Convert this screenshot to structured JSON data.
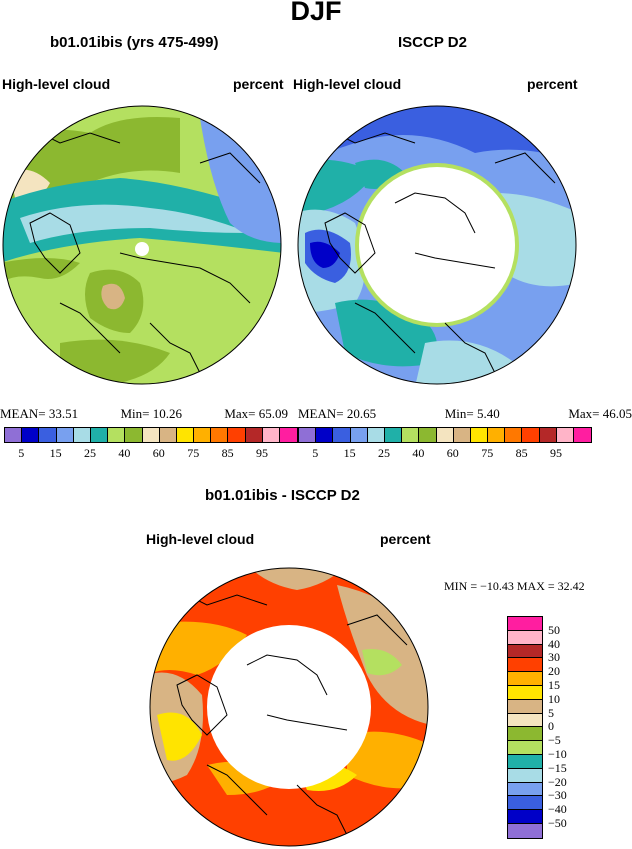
{
  "main_title": "DJF",
  "panels": [
    {
      "title": "b01.01ibis (yrs 475-499)",
      "left_label": "High-level cloud",
      "right_label": "percent",
      "stats": {
        "mean_label": "MEAN=",
        "mean": "33.51",
        "min_label": "Min=",
        "min": "10.26",
        "max_label": "Max=",
        "max": "65.09"
      }
    },
    {
      "title": "ISCCP D2",
      "left_label": "High-level cloud",
      "right_label": "percent",
      "stats": {
        "mean_label": "MEAN=",
        "mean": "20.65",
        "min_label": "Min=",
        "min": "5.40",
        "max_label": "Max=",
        "max": "46.05"
      }
    }
  ],
  "diff_panel": {
    "title": "b01.01ibis - ISCCP D2",
    "left_label": "High-level cloud",
    "right_label": "percent",
    "minmax": "MIN = −10.43  MAX =  32.42"
  },
  "colorbar": {
    "colors": [
      "#8f6fd6",
      "#0000c8",
      "#3a5fe0",
      "#78a0ef",
      "#a8dce6",
      "#20b0a8",
      "#b4e060",
      "#8cb830",
      "#f4e4c0",
      "#d8b484",
      "#ffe400",
      "#ffb000",
      "#ff7800",
      "#ff4000",
      "#b42828",
      "#ffb4c8",
      "#ff1ea0"
    ],
    "ticks": [
      "5",
      "15",
      "25",
      "40",
      "60",
      "75",
      "85",
      "95"
    ]
  },
  "diff_colorbar": {
    "colors_top_to_bottom": [
      "#ff1ea0",
      "#ffb4c8",
      "#b42828",
      "#ff4000",
      "#ffb000",
      "#ffe400",
      "#d8b484",
      "#f4e4c0",
      "#8cb830",
      "#b4e060",
      "#20b0a8",
      "#a8dce6",
      "#78a0ef",
      "#3a5fe0",
      "#0000c8",
      "#8f6fd6"
    ],
    "ticks": [
      "50",
      "40",
      "30",
      "20",
      "15",
      "10",
      "5",
      "0",
      "−5",
      "−10",
      "−15",
      "−20",
      "−30",
      "−40",
      "−50"
    ]
  }
}
